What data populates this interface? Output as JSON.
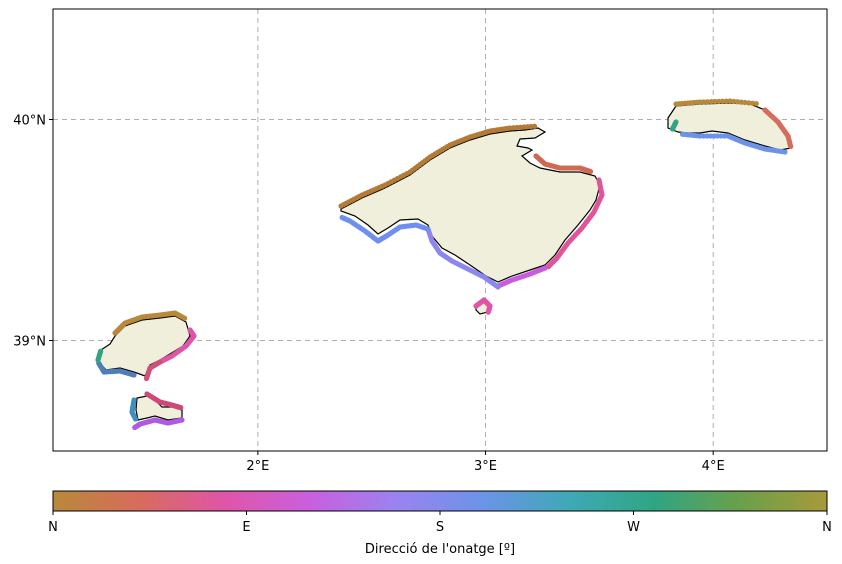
{
  "map": {
    "lat_ticks": [
      {
        "value": 40,
        "label": "40°N"
      },
      {
        "value": 39,
        "label": "39°N"
      }
    ],
    "lon_ticks": [
      {
        "value": 2,
        "label": "2°E"
      },
      {
        "value": 3,
        "label": "3°E"
      },
      {
        "value": 4,
        "label": "4°E"
      }
    ],
    "extent": {
      "lon": [
        1.1,
        4.5
      ],
      "lat": [
        38.5,
        40.5
      ]
    },
    "gridlines": true,
    "land_color": "#efefdb",
    "coast_color": "#000000",
    "islands": [
      "Mallorca",
      "Menorca",
      "Eivissa",
      "Formentera",
      "Cabrera"
    ]
  },
  "colorbar": {
    "label": "Direcció de l'onatge [º]",
    "ticks": [
      "N",
      "E",
      "S",
      "W",
      "N"
    ],
    "colors": [
      "#b8893a",
      "#d76c5c",
      "#e055a8",
      "#c95fdf",
      "#9a83f0",
      "#6c93e8",
      "#3fa9b6",
      "#30a583",
      "#6aa04a",
      "#a89a3a"
    ]
  }
}
